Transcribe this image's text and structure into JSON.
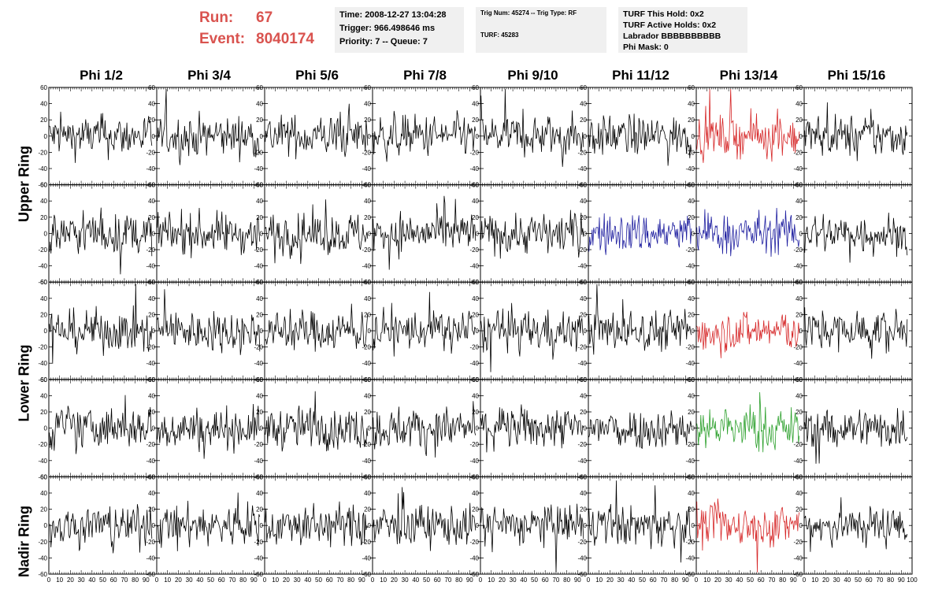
{
  "run": {
    "run_label": "Run:",
    "run_value": "67",
    "event_label": "Event:",
    "event_value": "8040174",
    "color": "#d9534f"
  },
  "time_box": {
    "line1": "Time: 2008-12-27 13:04:28",
    "line2": "Trigger: 966.498646 ms",
    "line3": "Priority: 7 -- Queue: 7"
  },
  "trig_box": {
    "line1": "Trig Num: 45274 -- Trig Type: RF",
    "line2": "TURF: 45283"
  },
  "turf_box": {
    "line1": "TURF This Hold: 0x2",
    "line2": "TURF Active Holds: 0x2",
    "line3": "Labrador BBBBBBBBBB",
    "line4": "Phi Mask: 0"
  },
  "phi_labels": [
    "Phi 1/2",
    "Phi 3/4",
    "Phi 5/6",
    "Phi 7/8",
    "Phi 9/10",
    "Phi 11/12",
    "Phi 13/14",
    "Phi 15/16"
  ],
  "ring_labels": {
    "upper": "Upper Ring",
    "lower": "Lower Ring",
    "nadir": "Nadir Ring"
  },
  "colors": {
    "normal": "#000000",
    "red": "#d62728",
    "blue": "#1f1fa0",
    "green": "#2ca02c"
  },
  "chart_data": {
    "type": "line",
    "grid_rows": 5,
    "grid_cols": 8,
    "xlim": [
      0,
      100
    ],
    "ylim": [
      -60,
      60
    ],
    "x_ticks": [
      0,
      10,
      20,
      30,
      40,
      50,
      60,
      70,
      80,
      90,
      100
    ],
    "y_ticks": [
      -60,
      -40,
      -20,
      0,
      20,
      40,
      60
    ],
    "amplitude_approx": 30,
    "samples_per_trace": 128,
    "highlighted_panels": [
      {
        "row": 0,
        "col": 6,
        "color": "red"
      },
      {
        "row": 1,
        "col": 5,
        "color": "blue"
      },
      {
        "row": 1,
        "col": 6,
        "color": "blue"
      },
      {
        "row": 2,
        "col": 6,
        "color": "red"
      },
      {
        "row": 3,
        "col": 6,
        "color": "green"
      },
      {
        "row": 4,
        "col": 6,
        "color": "red"
      }
    ]
  }
}
